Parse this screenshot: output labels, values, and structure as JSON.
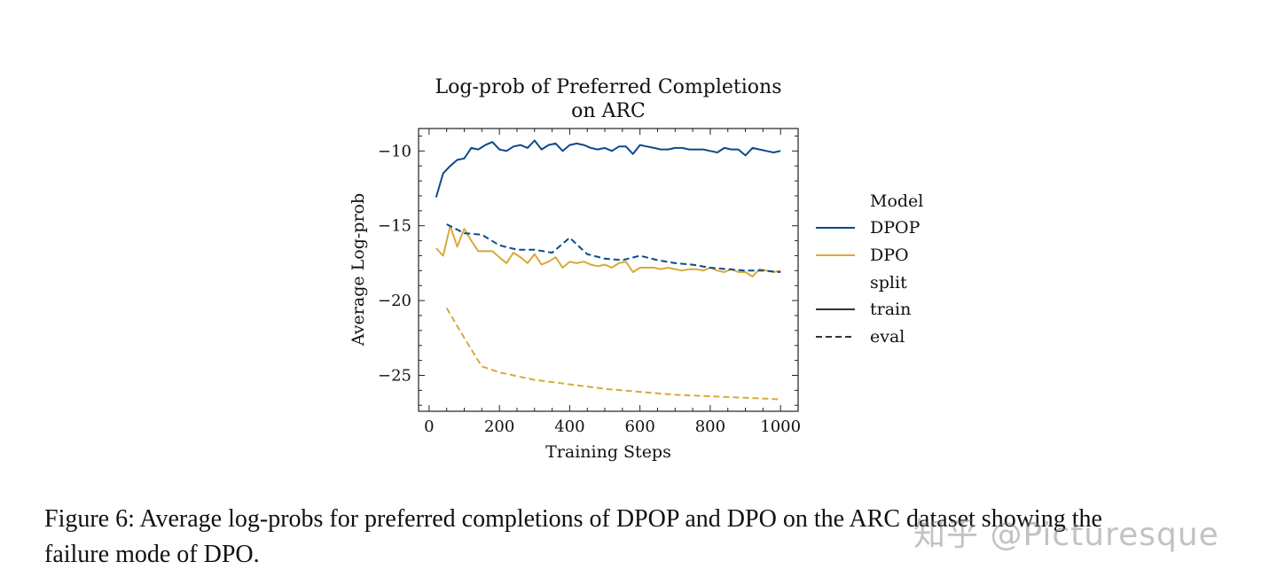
{
  "chart_data": {
    "type": "line",
    "title": "Log-prob of Preferred Completions",
    "subtitle": "on ARC",
    "xlabel": "Training Steps",
    "ylabel": "Average Log-prob",
    "xlim": [
      -30,
      1050
    ],
    "ylim": [
      -27.4,
      -8.5
    ],
    "xticks": [
      0,
      200,
      400,
      600,
      800,
      1000
    ],
    "yticks": [
      -10,
      -15,
      -20,
      -25
    ],
    "ytick_labels": [
      "−10",
      "−15",
      "−20",
      "−25"
    ],
    "grid": false,
    "legend": {
      "placement": "right-outside",
      "model_title": "Model",
      "split_title": "split",
      "entries": [
        {
          "label": "DPOP",
          "color": "#0d4a8a",
          "style": "solid"
        },
        {
          "label": "DPO",
          "color": "#d9a93a",
          "style": "solid"
        },
        {
          "label": "train",
          "color": "#333333",
          "style": "solid"
        },
        {
          "label": "eval",
          "color": "#333333",
          "style": "dashed"
        }
      ]
    },
    "series": [
      {
        "model": "DPOP",
        "split": "train",
        "color": "#0d4a8a",
        "dashed": false,
        "x": [
          20,
          40,
          60,
          80,
          100,
          120,
          140,
          160,
          180,
          200,
          220,
          240,
          260,
          280,
          300,
          320,
          340,
          360,
          380,
          400,
          420,
          440,
          460,
          480,
          500,
          520,
          540,
          560,
          580,
          600,
          620,
          640,
          660,
          680,
          700,
          720,
          740,
          760,
          780,
          800,
          820,
          840,
          860,
          880,
          900,
          920,
          940,
          960,
          980,
          1000
        ],
        "y": [
          -13.1,
          -11.5,
          -11.0,
          -10.6,
          -10.5,
          -9.8,
          -9.9,
          -9.6,
          -9.4,
          -9.9,
          -10.0,
          -9.7,
          -9.6,
          -9.8,
          -9.3,
          -9.9,
          -9.6,
          -9.5,
          -10.0,
          -9.6,
          -9.5,
          -9.6,
          -9.8,
          -9.9,
          -9.8,
          -10.0,
          -9.7,
          -9.7,
          -10.2,
          -9.6,
          -9.7,
          -9.8,
          -9.9,
          -9.9,
          -9.8,
          -9.8,
          -9.9,
          -9.9,
          -9.9,
          -10.0,
          -10.1,
          -9.8,
          -9.9,
          -9.9,
          -10.3,
          -9.8,
          -9.9,
          -10.0,
          -10.1,
          -10.0
        ]
      },
      {
        "model": "DPO",
        "split": "train",
        "color": "#d9a93a",
        "dashed": false,
        "x": [
          20,
          40,
          60,
          80,
          100,
          120,
          140,
          160,
          180,
          200,
          220,
          240,
          260,
          280,
          300,
          320,
          340,
          360,
          380,
          400,
          420,
          440,
          460,
          480,
          500,
          520,
          540,
          560,
          580,
          600,
          620,
          640,
          660,
          680,
          700,
          720,
          740,
          760,
          780,
          800,
          820,
          840,
          860,
          880,
          900,
          920,
          940,
          960,
          980,
          1000
        ],
        "y": [
          -16.5,
          -17.0,
          -15.0,
          -16.4,
          -15.2,
          -16.0,
          -16.7,
          -16.7,
          -16.7,
          -17.1,
          -17.5,
          -16.8,
          -17.1,
          -17.5,
          -16.9,
          -17.6,
          -17.4,
          -17.1,
          -17.8,
          -17.4,
          -17.5,
          -17.4,
          -17.6,
          -17.7,
          -17.6,
          -17.8,
          -17.5,
          -17.4,
          -18.1,
          -17.8,
          -17.8,
          -17.8,
          -17.9,
          -17.8,
          -17.9,
          -18.0,
          -17.9,
          -17.9,
          -18.0,
          -17.8,
          -18.0,
          -18.1,
          -17.9,
          -18.1,
          -18.1,
          -18.4,
          -17.9,
          -18.0,
          -18.1,
          -18.0
        ]
      },
      {
        "model": "DPOP",
        "split": "eval",
        "color": "#0d4a8a",
        "dashed": true,
        "x": [
          50,
          100,
          150,
          200,
          250,
          300,
          350,
          400,
          450,
          500,
          550,
          600,
          650,
          700,
          750,
          800,
          850,
          900,
          950,
          1000
        ],
        "y": [
          -14.9,
          -15.5,
          -15.6,
          -16.3,
          -16.6,
          -16.6,
          -16.8,
          -15.8,
          -16.9,
          -17.2,
          -17.3,
          -17.0,
          -17.3,
          -17.5,
          -17.6,
          -17.8,
          -17.9,
          -18.0,
          -18.0,
          -18.1
        ]
      },
      {
        "model": "DPO",
        "split": "eval",
        "color": "#d9a93a",
        "dashed": true,
        "x": [
          50,
          100,
          150,
          200,
          300,
          400,
          500,
          600,
          700,
          800,
          900,
          1000
        ],
        "y": [
          -20.5,
          -22.5,
          -24.4,
          -24.8,
          -25.3,
          -25.6,
          -25.9,
          -26.1,
          -26.3,
          -26.4,
          -26.5,
          -26.6
        ]
      }
    ]
  },
  "caption": {
    "line1": "Figure 6: Average log-probs for preferred completions of DPOP and DPO on the ARC dataset showing the",
    "line2": "failure mode of DPO."
  },
  "watermark": "知乎 @Picturesque"
}
